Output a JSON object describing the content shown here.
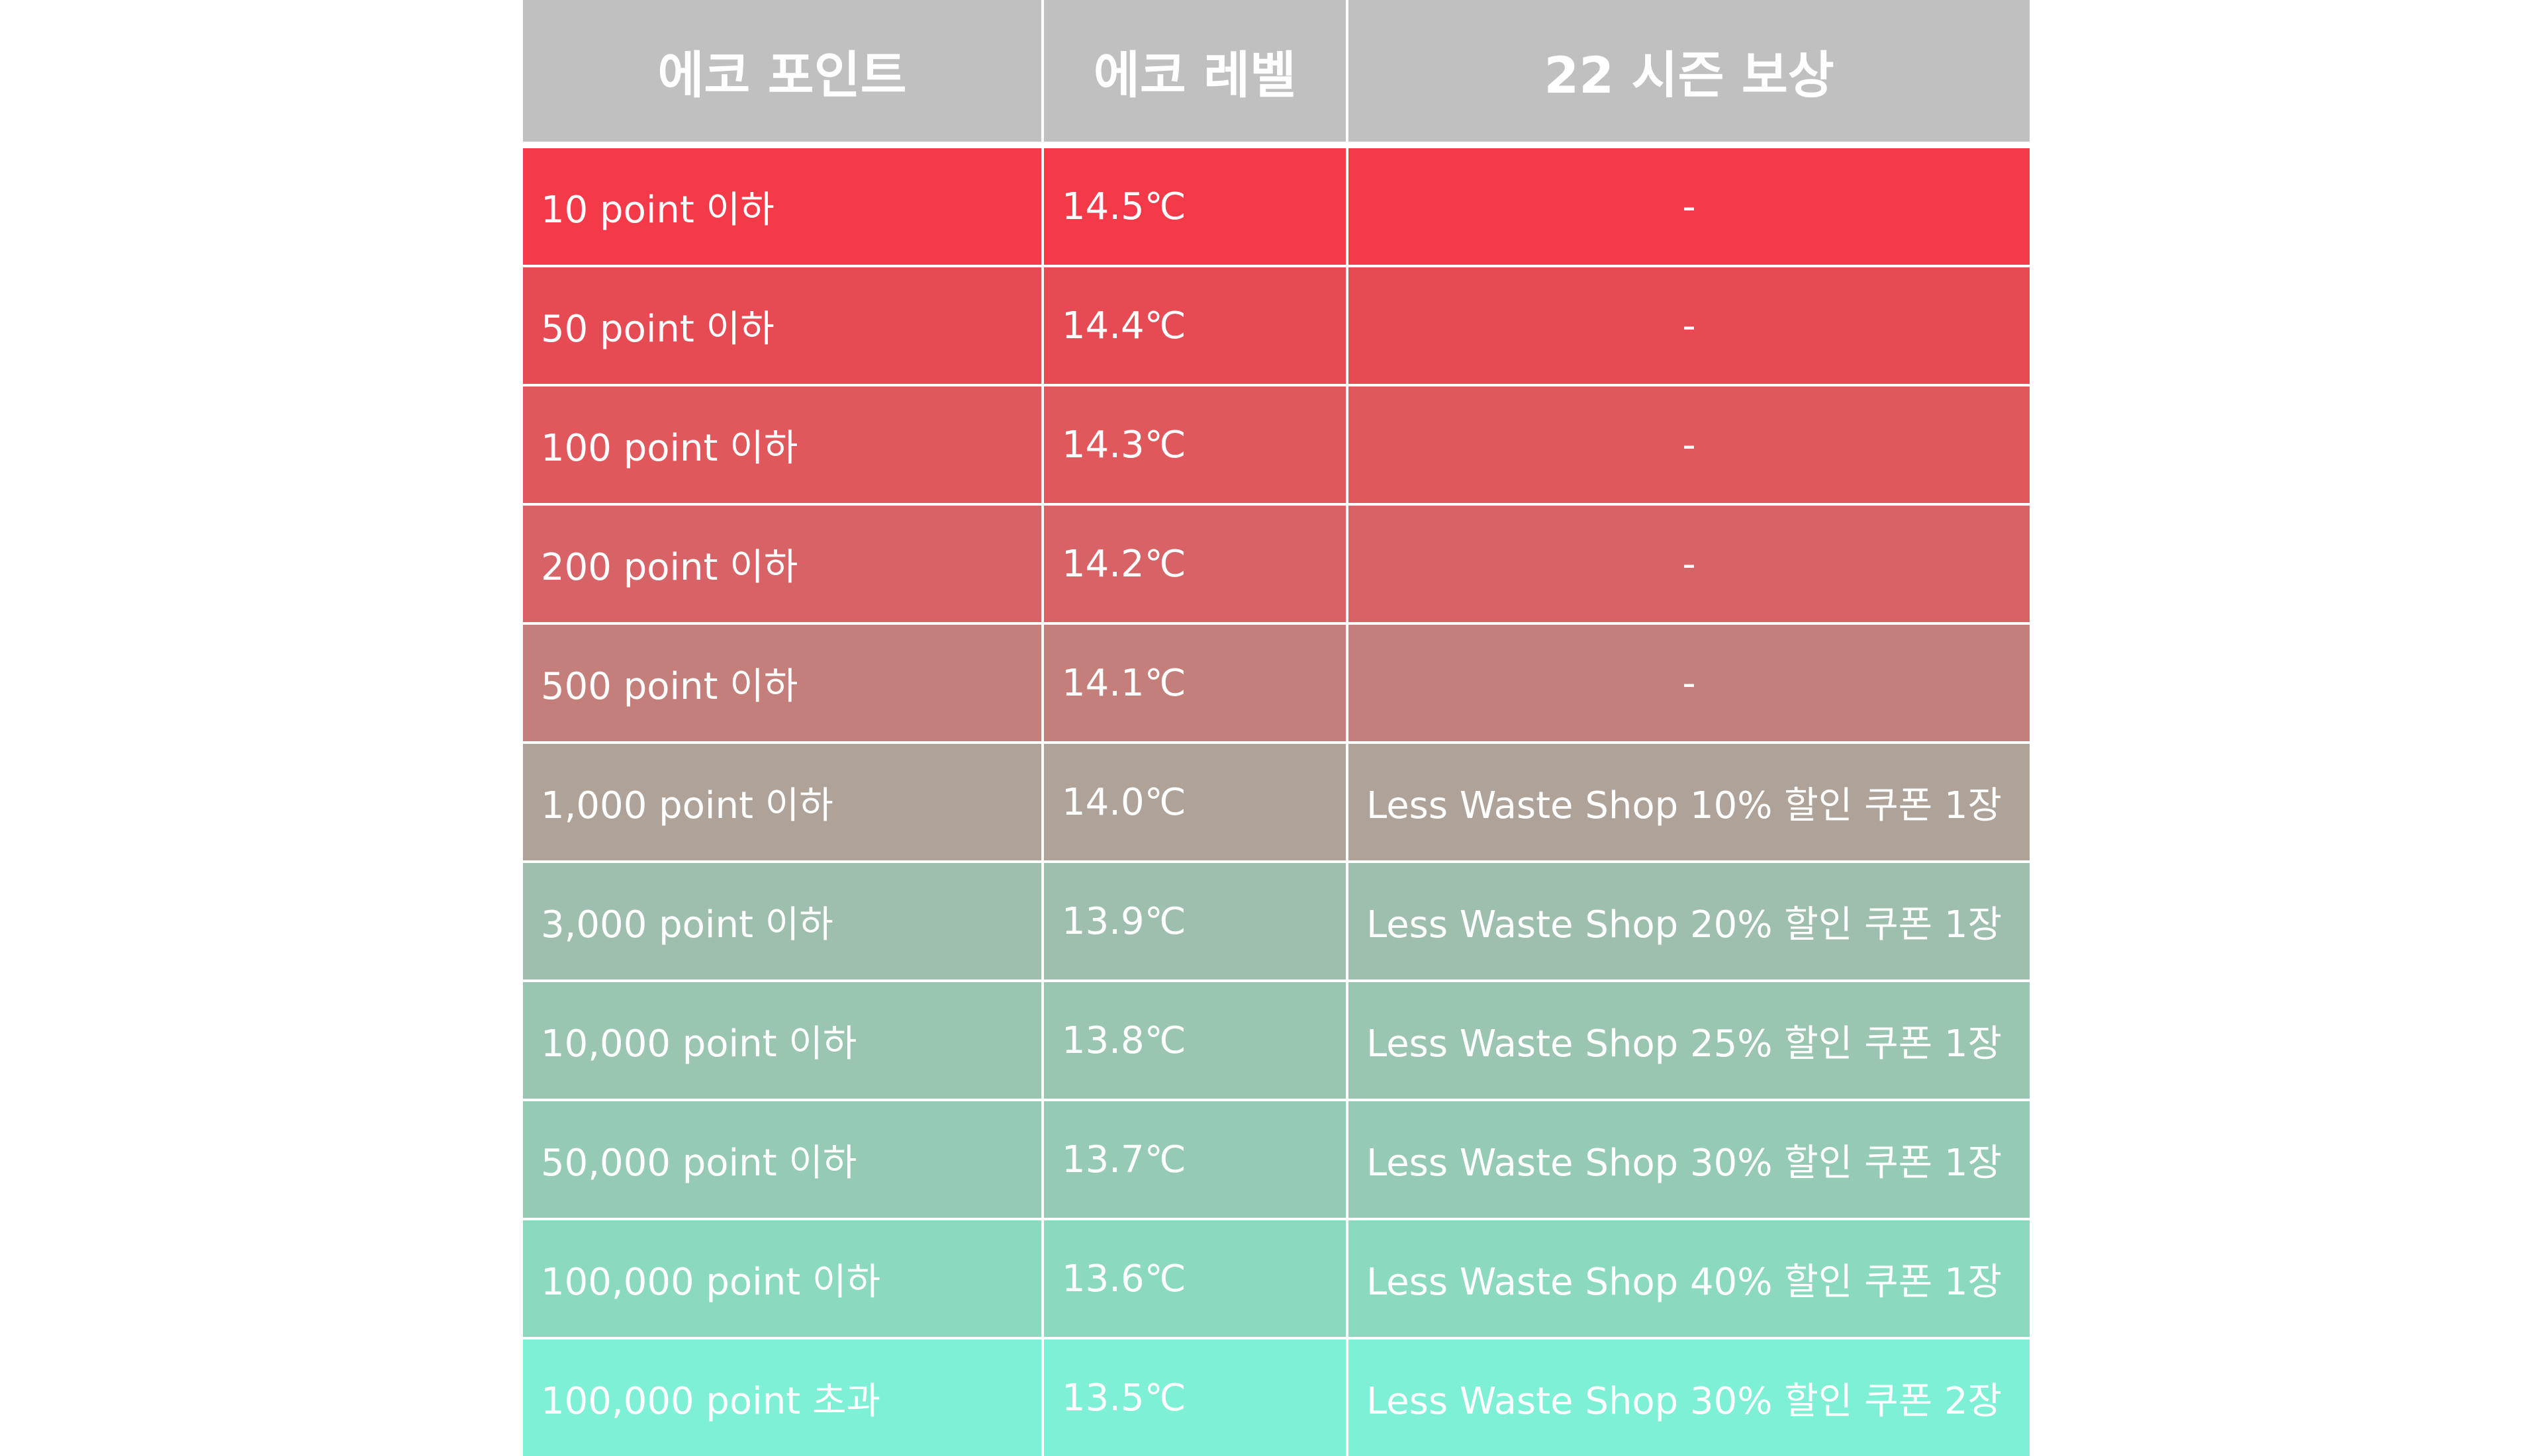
{
  "table": {
    "headers": [
      "에코 포인트",
      "에코 레벨",
      "22 시즌 보상"
    ],
    "rows": [
      {
        "points": "10 point 이하",
        "level": "14.5℃",
        "reward": "-",
        "color": "#f43a49"
      },
      {
        "points": "50 point 이하",
        "level": "14.4℃",
        "reward": "-",
        "color": "#e64b53"
      },
      {
        "points": "100 point 이하",
        "level": "14.3℃",
        "reward": "-",
        "color": "#e0575c"
      },
      {
        "points": "200 point 이하",
        "level": "14.2℃",
        "reward": "-",
        "color": "#d76366"
      },
      {
        "points": "500 point 이하",
        "level": "14.1℃",
        "reward": "-",
        "color": "#c47f7b"
      },
      {
        "points": "1,000 point 이하",
        "level": "14.0℃",
        "reward": "Less Waste Shop 10% 할인 쿠폰 1장",
        "color": "#aea299"
      },
      {
        "points": "3,000 point 이하",
        "level": "13.9℃",
        "reward": "Less Waste Shop 20% 할인 쿠폰 1장",
        "color": "#9fbfae"
      },
      {
        "points": "10,000 point 이하",
        "level": "13.8℃",
        "reward": "Less Waste Shop 25% 할인 쿠폰 1장",
        "color": "#9ac5b1"
      },
      {
        "points": "50,000 point 이하",
        "level": "13.7℃",
        "reward": "Less Waste Shop 30% 할인 쿠폰 1장",
        "color": "#95cab5"
      },
      {
        "points": "100,000 point 이하",
        "level": "13.6℃",
        "reward": "Less Waste Shop 40% 할인 쿠폰 1장",
        "color": "#8bd9bf"
      },
      {
        "points": "100,000 point 초과",
        "level": "13.5℃",
        "reward": "Less Waste Shop 30% 할인 쿠폰 2장",
        "color": "#7ef0d6"
      }
    ]
  }
}
